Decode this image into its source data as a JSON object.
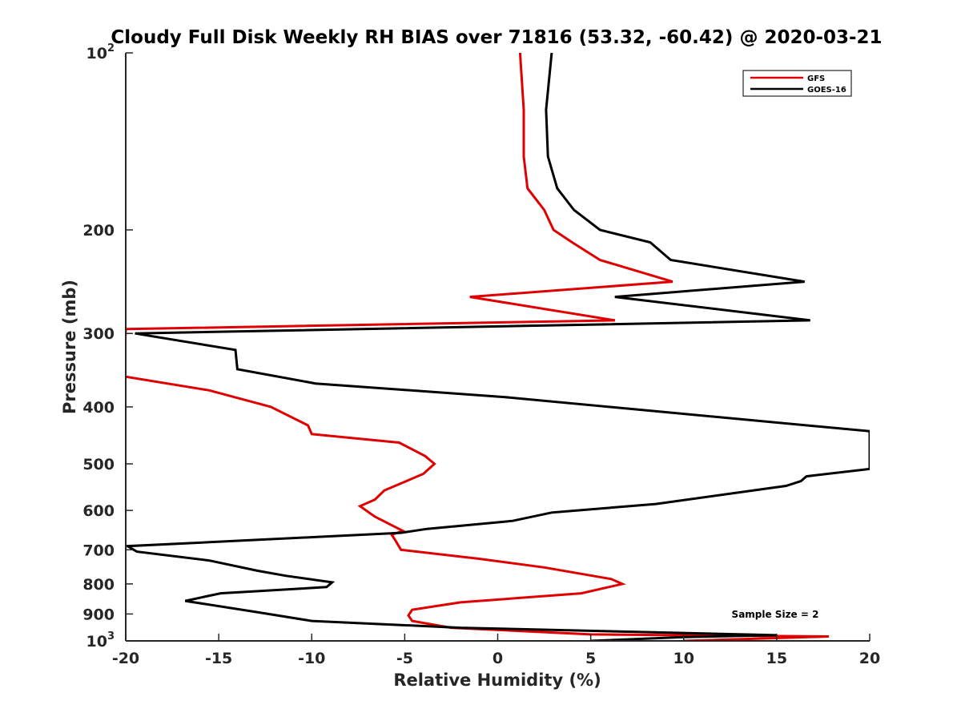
{
  "chart_data": {
    "type": "line",
    "title": "Cloudy Full Disk Weekly RH BIAS over 71816 (53.32, -60.42) @ 2020-03-21",
    "xlabel": "Relative Humidity (%)",
    "ylabel": "Pressure (mb)",
    "xlim": [
      -20,
      20
    ],
    "ylim": [
      1000,
      100
    ],
    "yscale": "log",
    "y_reversed": true,
    "grid": false,
    "legend_position": "top-right",
    "x_ticks": [
      "-20",
      "-15",
      "-10",
      "-5",
      "0",
      "5",
      "10",
      "15",
      "20"
    ],
    "y_ticks": [
      {
        "value": 100,
        "base": "10",
        "exp": "2"
      },
      {
        "value": 200,
        "label": "200"
      },
      {
        "value": 300,
        "label": "300"
      },
      {
        "value": 400,
        "label": "400"
      },
      {
        "value": 500,
        "label": "500"
      },
      {
        "value": 600,
        "label": "600"
      },
      {
        "value": 700,
        "label": "700"
      },
      {
        "value": 800,
        "label": "800"
      },
      {
        "value": 900,
        "label": "900"
      },
      {
        "value": 1000,
        "base": "10",
        "exp": "3"
      }
    ],
    "annotation": "Sample Size = 2",
    "series": [
      {
        "name": "GFS",
        "color": "#e00000",
        "points": [
          [
            1.2,
            100
          ],
          [
            1.4,
            125
          ],
          [
            1.4,
            150
          ],
          [
            1.6,
            170
          ],
          [
            2.5,
            185
          ],
          [
            3.0,
            200
          ],
          [
            4.0,
            210
          ],
          [
            5.5,
            225
          ],
          [
            9.4,
            245
          ],
          [
            -1.5,
            260
          ],
          [
            6.3,
            285
          ],
          [
            -20.0,
            295
          ],
          [
            -20.1,
            355
          ],
          [
            -15.5,
            375
          ],
          [
            -12.2,
            400
          ],
          [
            -10.2,
            430
          ],
          [
            -10.0,
            445
          ],
          [
            -5.3,
            460
          ],
          [
            -3.9,
            485
          ],
          [
            -3.4,
            500
          ],
          [
            -4.0,
            520
          ],
          [
            -6.1,
            555
          ],
          [
            -6.6,
            575
          ],
          [
            -7.4,
            590
          ],
          [
            -6.6,
            615
          ],
          [
            -5.1,
            650
          ],
          [
            -5.7,
            660
          ],
          [
            -5.5,
            675
          ],
          [
            -5.2,
            700
          ],
          [
            -1.0,
            725
          ],
          [
            2.5,
            750
          ],
          [
            6.1,
            785
          ],
          [
            6.7,
            800
          ],
          [
            4.5,
            830
          ],
          [
            -2.0,
            860
          ],
          [
            -4.6,
            885
          ],
          [
            -4.8,
            905
          ],
          [
            -4.6,
            925
          ],
          [
            -2.5,
            950
          ],
          [
            5.0,
            975
          ],
          [
            17.8,
            983
          ],
          [
            10.0,
            1000
          ]
        ]
      },
      {
        "name": "GOES-16",
        "color": "#000000",
        "points": [
          [
            2.9,
            100
          ],
          [
            2.6,
            125
          ],
          [
            2.7,
            150
          ],
          [
            3.2,
            170
          ],
          [
            4.1,
            185
          ],
          [
            5.5,
            200
          ],
          [
            8.2,
            210
          ],
          [
            9.3,
            225
          ],
          [
            16.5,
            245
          ],
          [
            6.3,
            260
          ],
          [
            16.8,
            285
          ],
          [
            -19.5,
            300
          ],
          [
            -14.1,
            320
          ],
          [
            -14.0,
            345
          ],
          [
            -9.8,
            365
          ],
          [
            0.4,
            385
          ],
          [
            20.0,
            440
          ],
          [
            20.0,
            510
          ],
          [
            16.6,
            525
          ],
          [
            16.3,
            535
          ],
          [
            15.5,
            545
          ],
          [
            8.5,
            585
          ],
          [
            2.9,
            605
          ],
          [
            0.8,
            625
          ],
          [
            -3.8,
            645
          ],
          [
            -5.2,
            655
          ],
          [
            -9.5,
            665
          ],
          [
            -19.9,
            690
          ],
          [
            -19.4,
            705
          ],
          [
            -15.5,
            730
          ],
          [
            -12.9,
            760
          ],
          [
            -11.4,
            775
          ],
          [
            -8.9,
            795
          ],
          [
            -9.2,
            810
          ],
          [
            -14.9,
            830
          ],
          [
            -16.8,
            855
          ],
          [
            -12.8,
            895
          ],
          [
            -10.0,
            925
          ],
          [
            -2.0,
            950
          ],
          [
            15.0,
            978
          ],
          [
            10.0,
            985
          ],
          [
            5.0,
            1000
          ]
        ]
      }
    ]
  }
}
